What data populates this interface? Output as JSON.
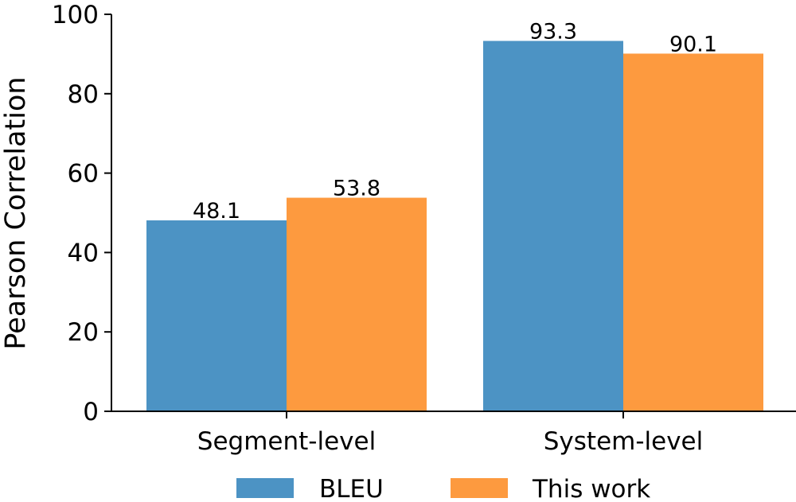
{
  "chart_data": {
    "type": "bar",
    "title": "",
    "xlabel": "",
    "ylabel": "Pearson Correlation",
    "ylim": [
      0,
      100
    ],
    "yticks": [
      0,
      20,
      40,
      60,
      80,
      100
    ],
    "categories": [
      "Segment-level",
      "System-level"
    ],
    "series": [
      {
        "name": "BLEU",
        "values": [
          48.1,
          93.3
        ],
        "labels": [
          "48.1",
          "93.3"
        ],
        "color": "#4c93c4"
      },
      {
        "name": "This work",
        "values": [
          53.8,
          90.1
        ],
        "labels": [
          "53.8",
          "90.1"
        ],
        "color": "#fd9a3f"
      }
    ],
    "grid": false,
    "legend": "bottom"
  }
}
